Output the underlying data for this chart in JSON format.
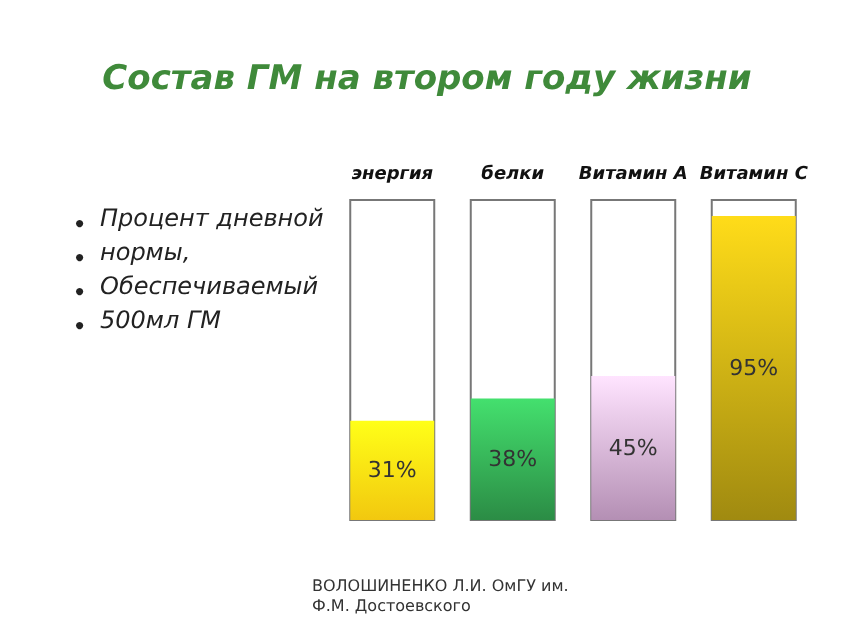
{
  "chart_data": {
    "type": "bar",
    "title": "Состав ГМ на втором году жизни",
    "categories": [
      "энергия",
      "белки",
      "Витамин А",
      "Витамин С"
    ],
    "values": [
      31,
      38,
      45,
      95
    ],
    "value_labels": [
      "31%",
      "38%",
      "45%",
      "95%"
    ],
    "colors": [
      "#f2c80f",
      "#2b8c45",
      "#b48fb4",
      "#a08a10"
    ],
    "ylim": [
      0,
      100
    ],
    "tick_labels": "x",
    "annotations": [
      "Процент дневной",
      "нормы,",
      "Обеспечиваемый",
      "500мл ГМ",
      "ВОЛОШИНЕНКО Л.И. ОмГУ им.\nФ.М. Достоевского"
    ]
  }
}
